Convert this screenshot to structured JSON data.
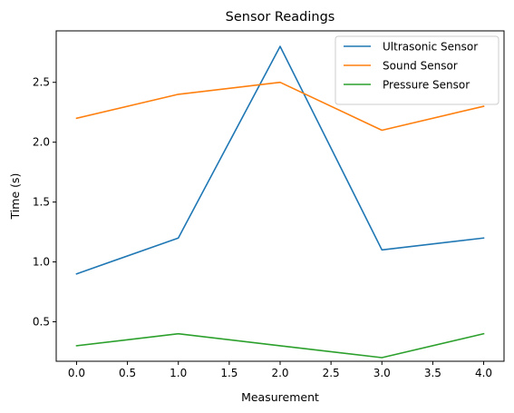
{
  "chart_data": {
    "type": "line",
    "title": "Sensor Readings",
    "xlabel": "Measurement",
    "ylabel": "Time (s)",
    "x": [
      0,
      1,
      2,
      3,
      4
    ],
    "xlim": [
      -0.2,
      4.2
    ],
    "ylim": [
      0.17,
      2.93
    ],
    "xticks": [
      "0.0",
      "0.5",
      "1.0",
      "1.5",
      "2.0",
      "2.5",
      "3.0",
      "3.5",
      "4.0"
    ],
    "yticks": [
      "0.5",
      "1.0",
      "1.5",
      "2.0",
      "2.5"
    ],
    "grid": false,
    "legend_position": "top-right",
    "series": [
      {
        "name": "Ultrasonic Sensor",
        "color": "#1f77b4",
        "values": [
          0.9,
          1.2,
          2.8,
          1.1,
          1.2
        ]
      },
      {
        "name": "Sound Sensor",
        "color": "#ff7f0e",
        "values": [
          2.2,
          2.4,
          2.5,
          2.1,
          2.3
        ]
      },
      {
        "name": "Pressure Sensor",
        "color": "#2ca02c",
        "values": [
          0.3,
          0.4,
          0.3,
          0.2,
          0.4
        ]
      }
    ]
  }
}
